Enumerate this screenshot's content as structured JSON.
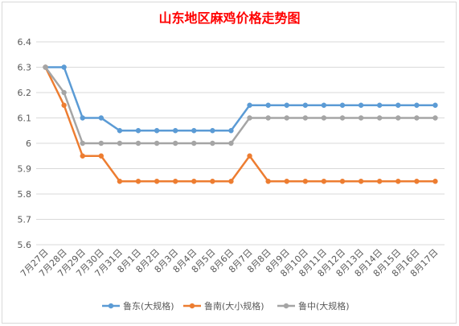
{
  "chart_data": {
    "type": "line",
    "title": "山东地区麻鸡价格走势图",
    "xlabel": "",
    "ylabel": "",
    "ylim": [
      5.6,
      6.4
    ],
    "yticks": [
      5.6,
      5.7,
      5.8,
      5.9,
      6,
      6.1,
      6.2,
      6.3,
      6.4
    ],
    "grid": true,
    "legend_position": "bottom",
    "categories": [
      "7月27日",
      "7月28日",
      "7月29日",
      "7月30日",
      "7月31日",
      "8月1日",
      "8月2日",
      "8月3日",
      "8月4日",
      "8月5日",
      "8月6日",
      "8月7日",
      "8月8日",
      "8月9日",
      "8月10日",
      "8月11日",
      "8月12日",
      "8月13日",
      "8月14日",
      "8月15日",
      "8月16日",
      "8月17日"
    ],
    "series": [
      {
        "name": "鲁东(大规格)",
        "color": "#5b9bd5",
        "values": [
          6.3,
          6.3,
          6.1,
          6.1,
          6.05,
          6.05,
          6.05,
          6.05,
          6.05,
          6.05,
          6.05,
          6.15,
          6.15,
          6.15,
          6.15,
          6.15,
          6.15,
          6.15,
          6.15,
          6.15,
          6.15,
          6.15
        ]
      },
      {
        "name": "鲁南(大小规格)",
        "color": "#ed7d31",
        "values": [
          6.3,
          6.15,
          5.95,
          5.95,
          5.85,
          5.85,
          5.85,
          5.85,
          5.85,
          5.85,
          5.85,
          5.95,
          5.85,
          5.85,
          5.85,
          5.85,
          5.85,
          5.85,
          5.85,
          5.85,
          5.85,
          5.85
        ]
      },
      {
        "name": "鲁中(大规格)",
        "color": "#a5a5a5",
        "values": [
          6.3,
          6.2,
          6.0,
          6.0,
          6.0,
          6.0,
          6.0,
          6.0,
          6.0,
          6.0,
          6.0,
          6.1,
          6.1,
          6.1,
          6.1,
          6.1,
          6.1,
          6.1,
          6.1,
          6.1,
          6.1,
          6.1
        ]
      }
    ]
  }
}
